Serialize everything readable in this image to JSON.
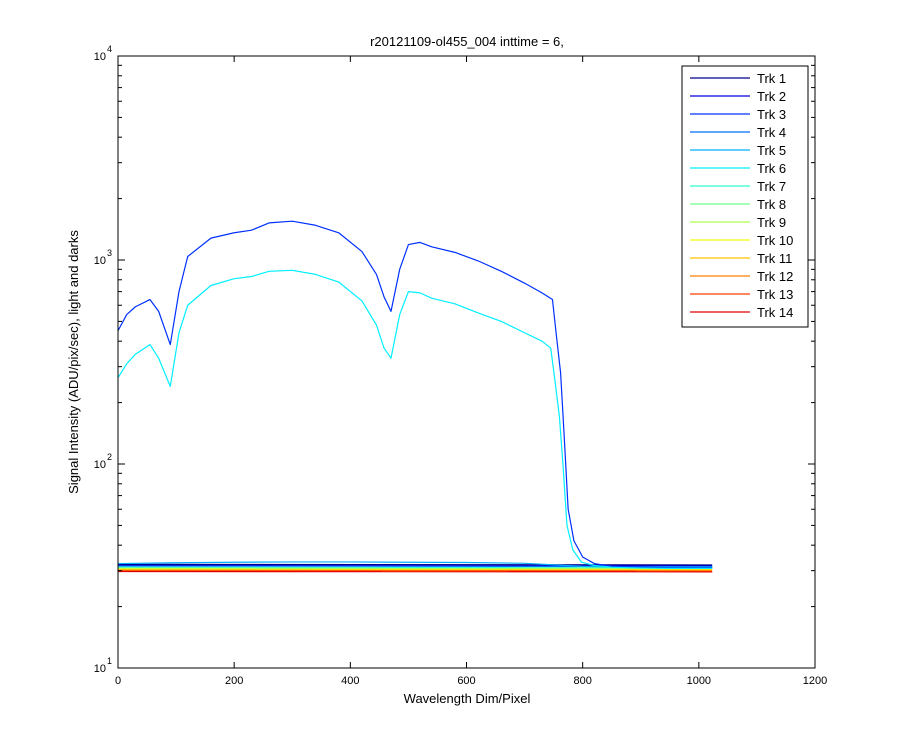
{
  "chart_data": {
    "type": "line",
    "title": "r20121109-ol455_004 inttime = 6,",
    "xlabel": "Wavelength Dim/Pixel",
    "ylabel": "Signal Intensity (ADU/pix/sec), light and darks",
    "xlim": [
      0,
      1200
    ],
    "ylim": [
      10,
      10000
    ],
    "yscale": "log",
    "grid": false,
    "legend_position": "top-right",
    "x_ticks": [
      "0",
      "200",
      "400",
      "600",
      "800",
      "1000",
      "1200"
    ],
    "y_ticks": [
      {
        "base": "10",
        "exp": "1"
      },
      {
        "base": "10",
        "exp": "2"
      },
      {
        "base": "10",
        "exp": "3"
      },
      {
        "base": "10",
        "exp": "4"
      }
    ],
    "series": [
      {
        "name": "Trk 1",
        "color": "#00008F",
        "x": [
          0,
          1023
        ],
        "y": [
          32.2,
          32.0
        ]
      },
      {
        "name": "Trk 2",
        "color": "#0000DF",
        "x": [
          0,
          1023
        ],
        "y": [
          31.8,
          31.6
        ]
      },
      {
        "name": "Trk 3",
        "color": "#0030FF",
        "x": [
          0,
          15,
          30,
          55,
          70,
          90,
          105,
          120,
          160,
          200,
          230,
          260,
          300,
          340,
          380,
          420,
          445,
          458,
          470,
          485,
          500,
          520,
          540,
          580,
          620,
          660,
          700,
          730,
          748,
          755,
          762,
          768,
          775,
          785,
          800,
          820,
          850,
          880,
          910,
          950,
          1000,
          1023
        ],
        "y": [
          450,
          540,
          590,
          640,
          560,
          385,
          700,
          1040,
          1280,
          1360,
          1400,
          1520,
          1550,
          1480,
          1360,
          1100,
          850,
          660,
          560,
          900,
          1190,
          1220,
          1160,
          1090,
          990,
          880,
          770,
          690,
          640,
          420,
          280,
          140,
          60,
          42,
          35,
          32.5,
          31.5,
          31.3,
          31.2,
          31.0,
          31.0,
          31.0
        ]
      },
      {
        "name": "Trk 4",
        "color": "#0070FF",
        "x": [
          0,
          1023
        ],
        "y": [
          31.6,
          31.4
        ]
      },
      {
        "name": "Trk 5",
        "color": "#00AFFF",
        "x": [
          0,
          100,
          200,
          300,
          400,
          500,
          600,
          700,
          800,
          900,
          1023
        ],
        "y": [
          32.5,
          32.8,
          33.0,
          33.1,
          33.1,
          33.0,
          32.9,
          32.6,
          31.5,
          31.2,
          31.2
        ]
      },
      {
        "name": "Trk 6",
        "color": "#00EFFF",
        "x": [
          0,
          15,
          30,
          55,
          70,
          90,
          105,
          120,
          160,
          200,
          230,
          260,
          300,
          340,
          380,
          420,
          445,
          458,
          470,
          485,
          500,
          520,
          540,
          580,
          620,
          660,
          700,
          730,
          745,
          752,
          760,
          766,
          773,
          783,
          798,
          820,
          850,
          880,
          910,
          950,
          1000,
          1023
        ],
        "y": [
          265,
          310,
          345,
          385,
          330,
          240,
          440,
          600,
          750,
          810,
          830,
          880,
          890,
          850,
          780,
          630,
          480,
          370,
          330,
          540,
          700,
          690,
          650,
          610,
          550,
          500,
          440,
          400,
          370,
          260,
          170,
          100,
          50,
          38,
          33,
          31.8,
          31.2,
          31.0,
          30.9,
          30.8,
          30.8,
          30.8
        ]
      },
      {
        "name": "Trk 7",
        "color": "#30FFCF",
        "x": [
          0,
          1023
        ],
        "y": [
          31.2,
          31.0
        ]
      },
      {
        "name": "Trk 8",
        "color": "#70FF8F",
        "x": [
          0,
          1023
        ],
        "y": [
          30.9,
          30.8
        ]
      },
      {
        "name": "Trk 9",
        "color": "#AFFF50",
        "x": [
          0,
          1023
        ],
        "y": [
          30.7,
          30.6
        ]
      },
      {
        "name": "Trk 10",
        "color": "#EFFF10",
        "x": [
          0,
          1023
        ],
        "y": [
          30.5,
          30.4
        ]
      },
      {
        "name": "Trk 11",
        "color": "#FFC000",
        "x": [
          0,
          1023
        ],
        "y": [
          30.3,
          30.2
        ]
      },
      {
        "name": "Trk 12",
        "color": "#FF7F00",
        "x": [
          0,
          1023
        ],
        "y": [
          30.1,
          30.0
        ]
      },
      {
        "name": "Trk 13",
        "color": "#FF4000",
        "x": [
          0,
          1023
        ],
        "y": [
          29.9,
          29.8
        ]
      },
      {
        "name": "Trk 14",
        "color": "#DF0000",
        "x": [
          0,
          1023
        ],
        "y": [
          29.7,
          29.6
        ]
      }
    ]
  }
}
